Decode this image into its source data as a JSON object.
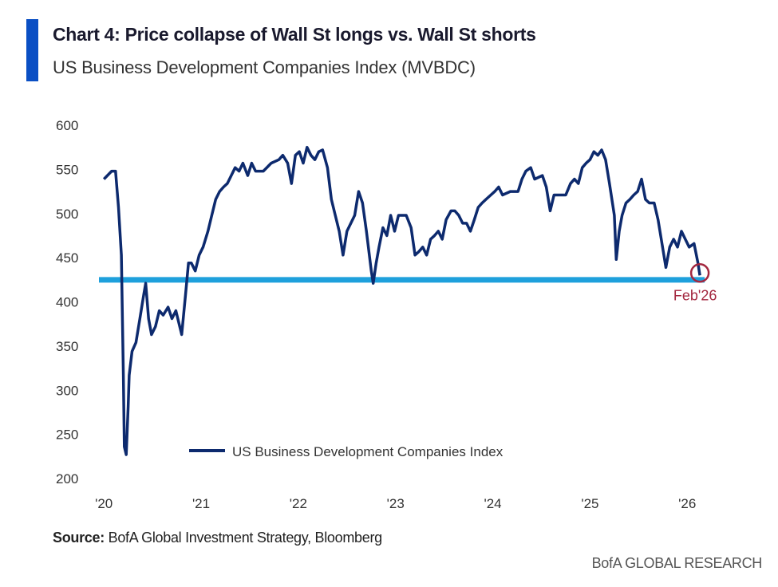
{
  "header": {
    "title": "Chart 4: Price collapse of Wall St longs vs. Wall St shorts",
    "subtitle": "US Business Development Companies Index (MVBDC)"
  },
  "footer": {
    "source_label": "Source:",
    "source_text": " BofA Global Investment Strategy, Bloomberg",
    "brand": "BofA GLOBAL RESEARCH"
  },
  "colors": {
    "line": "#0d2a6e",
    "support_line": "#1ea0dc",
    "annotation": "#a3273f",
    "accent_bar": "#0a4fc4"
  },
  "chart_data": {
    "type": "line",
    "title": "Chart 4: Price collapse of Wall St longs vs. Wall St shorts",
    "subtitle": "US Business Development Companies Index (MVBDC)",
    "ylim": [
      200,
      600
    ],
    "xlim": [
      2019.9,
      2026.4
    ],
    "yticks": [
      200,
      250,
      300,
      350,
      400,
      450,
      500,
      550,
      600
    ],
    "xticks": [
      {
        "v": 2020,
        "label": "'20"
      },
      {
        "v": 2021,
        "label": "'21"
      },
      {
        "v": 2022,
        "label": "'22"
      },
      {
        "v": 2023,
        "label": "'23"
      },
      {
        "v": 2024,
        "label": "'24"
      },
      {
        "v": 2025,
        "label": "'25"
      },
      {
        "v": 2026,
        "label": "'26"
      }
    ],
    "grid": false,
    "legend": {
      "position": "bottom-center",
      "entries": [
        "US Business Development Companies Index"
      ]
    },
    "support_level": 425,
    "annotation": {
      "label": "Feb'26",
      "x": 2026.13,
      "y": 430
    },
    "series": [
      {
        "name": "US Business Development Companies Index",
        "points": [
          [
            2020.0,
            539
          ],
          [
            2020.08,
            548
          ],
          [
            2020.12,
            548
          ],
          [
            2020.15,
            507
          ],
          [
            2020.18,
            453
          ],
          [
            2020.2,
            317
          ],
          [
            2020.21,
            236
          ],
          [
            2020.23,
            227
          ],
          [
            2020.25,
            281
          ],
          [
            2020.26,
            317
          ],
          [
            2020.29,
            344
          ],
          [
            2020.33,
            354
          ],
          [
            2020.37,
            381
          ],
          [
            2020.41,
            408
          ],
          [
            2020.43,
            421
          ],
          [
            2020.46,
            381
          ],
          [
            2020.49,
            363
          ],
          [
            2020.53,
            372
          ],
          [
            2020.57,
            390
          ],
          [
            2020.61,
            385
          ],
          [
            2020.66,
            394
          ],
          [
            2020.7,
            381
          ],
          [
            2020.74,
            390
          ],
          [
            2020.8,
            363
          ],
          [
            2020.84,
            408
          ],
          [
            2020.87,
            444
          ],
          [
            2020.9,
            444
          ],
          [
            2020.94,
            435
          ],
          [
            2020.98,
            453
          ],
          [
            2021.02,
            462
          ],
          [
            2021.07,
            480
          ],
          [
            2021.11,
            498
          ],
          [
            2021.15,
            516
          ],
          [
            2021.19,
            525
          ],
          [
            2021.23,
            530
          ],
          [
            2021.27,
            534
          ],
          [
            2021.31,
            543
          ],
          [
            2021.35,
            552
          ],
          [
            2021.39,
            548
          ],
          [
            2021.43,
            557
          ],
          [
            2021.48,
            543
          ],
          [
            2021.52,
            557
          ],
          [
            2021.56,
            548
          ],
          [
            2021.64,
            548
          ],
          [
            2021.72,
            557
          ],
          [
            2021.8,
            561
          ],
          [
            2021.84,
            566
          ],
          [
            2021.89,
            557
          ],
          [
            2021.93,
            534
          ],
          [
            2021.97,
            566
          ],
          [
            2022.01,
            570
          ],
          [
            2022.05,
            557
          ],
          [
            2022.09,
            575
          ],
          [
            2022.13,
            566
          ],
          [
            2022.17,
            561
          ],
          [
            2022.21,
            570
          ],
          [
            2022.25,
            572
          ],
          [
            2022.3,
            552
          ],
          [
            2022.34,
            516
          ],
          [
            2022.38,
            498
          ],
          [
            2022.42,
            480
          ],
          [
            2022.46,
            453
          ],
          [
            2022.5,
            480
          ],
          [
            2022.54,
            489
          ],
          [
            2022.58,
            498
          ],
          [
            2022.62,
            525
          ],
          [
            2022.66,
            512
          ],
          [
            2022.7,
            480
          ],
          [
            2022.75,
            435
          ],
          [
            2022.77,
            421
          ],
          [
            2022.8,
            444
          ],
          [
            2022.83,
            462
          ],
          [
            2022.87,
            484
          ],
          [
            2022.91,
            475
          ],
          [
            2022.95,
            498
          ],
          [
            2022.99,
            480
          ],
          [
            2023.03,
            498
          ],
          [
            2023.11,
            498
          ],
          [
            2023.16,
            484
          ],
          [
            2023.2,
            453
          ],
          [
            2023.24,
            457
          ],
          [
            2023.28,
            462
          ],
          [
            2023.32,
            453
          ],
          [
            2023.36,
            471
          ],
          [
            2023.4,
            475
          ],
          [
            2023.44,
            480
          ],
          [
            2023.48,
            471
          ],
          [
            2023.52,
            493
          ],
          [
            2023.57,
            503
          ],
          [
            2023.61,
            503
          ],
          [
            2023.65,
            498
          ],
          [
            2023.69,
            489
          ],
          [
            2023.73,
            489
          ],
          [
            2023.77,
            480
          ],
          [
            2023.81,
            493
          ],
          [
            2023.85,
            507
          ],
          [
            2023.89,
            512
          ],
          [
            2023.93,
            516
          ],
          [
            2023.98,
            521
          ],
          [
            2024.02,
            525
          ],
          [
            2024.06,
            530
          ],
          [
            2024.1,
            521
          ],
          [
            2024.18,
            525
          ],
          [
            2024.26,
            525
          ],
          [
            2024.3,
            539
          ],
          [
            2024.34,
            548
          ],
          [
            2024.39,
            552
          ],
          [
            2024.43,
            539
          ],
          [
            2024.51,
            543
          ],
          [
            2024.55,
            530
          ],
          [
            2024.59,
            503
          ],
          [
            2024.63,
            521
          ],
          [
            2024.67,
            521
          ],
          [
            2024.75,
            521
          ],
          [
            2024.8,
            534
          ],
          [
            2024.84,
            539
          ],
          [
            2024.88,
            534
          ],
          [
            2024.92,
            552
          ],
          [
            2024.96,
            557
          ],
          [
            2025.0,
            561
          ],
          [
            2025.04,
            570
          ],
          [
            2025.08,
            566
          ],
          [
            2025.12,
            572
          ],
          [
            2025.16,
            561
          ],
          [
            2025.2,
            534
          ],
          [
            2025.25,
            498
          ],
          [
            2025.27,
            448
          ],
          [
            2025.3,
            480
          ],
          [
            2025.33,
            498
          ],
          [
            2025.37,
            512
          ],
          [
            2025.41,
            516
          ],
          [
            2025.45,
            521
          ],
          [
            2025.49,
            525
          ],
          [
            2025.53,
            539
          ],
          [
            2025.57,
            516
          ],
          [
            2025.61,
            512
          ],
          [
            2025.66,
            512
          ],
          [
            2025.7,
            493
          ],
          [
            2025.74,
            466
          ],
          [
            2025.78,
            439
          ],
          [
            2025.82,
            462
          ],
          [
            2025.86,
            471
          ],
          [
            2025.9,
            462
          ],
          [
            2025.94,
            480
          ],
          [
            2025.98,
            471
          ],
          [
            2026.02,
            462
          ],
          [
            2026.07,
            466
          ],
          [
            2026.11,
            444
          ],
          [
            2026.13,
            430
          ]
        ]
      }
    ]
  }
}
